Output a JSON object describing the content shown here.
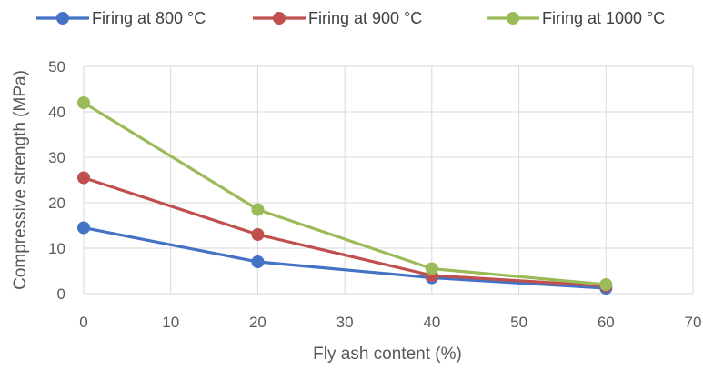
{
  "chart_data": {
    "type": "line",
    "xlabel": "Fly ash content (%)",
    "ylabel": "Compressive strength (MPa)",
    "xlim": [
      0,
      70
    ],
    "ylim": [
      0,
      50
    ],
    "xticks": [
      0,
      10,
      20,
      30,
      40,
      50,
      60,
      70
    ],
    "yticks": [
      0,
      10,
      20,
      30,
      40,
      50
    ],
    "grid": true,
    "legend_position": "top",
    "x": [
      0,
      20,
      40,
      60
    ],
    "series": [
      {
        "name": "Firing at 800 °C",
        "color": "#4472C4",
        "values": [
          14.5,
          7.0,
          3.5,
          1.2
        ]
      },
      {
        "name": "Firing at 900 °C",
        "color": "#C0504D",
        "values": [
          25.5,
          13.0,
          4.0,
          1.7
        ]
      },
      {
        "name": "Firing at 1000 °C",
        "color": "#9BBB59",
        "values": [
          42.0,
          18.5,
          5.5,
          2.0
        ]
      }
    ]
  }
}
